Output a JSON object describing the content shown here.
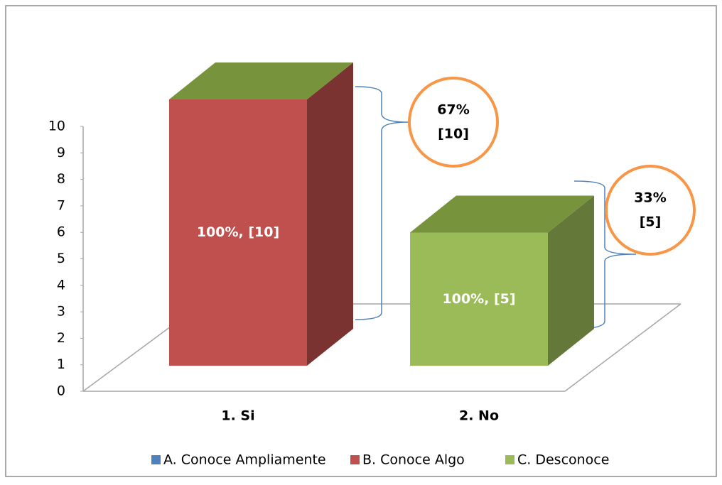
{
  "chart_data": {
    "type": "bar3d",
    "categories": [
      "1. Si",
      "2. No"
    ],
    "series": [
      {
        "name": "A. Conoce Ampliamente",
        "color": "#4f81bd",
        "values": [
          null,
          null
        ]
      },
      {
        "name": "B. Conoce Algo",
        "color": "#c0504d",
        "values": [
          10,
          null
        ],
        "value_labels": [
          "100%, [10]",
          null
        ]
      },
      {
        "name": "C. Desconoce",
        "color": "#9bbb59",
        "values": [
          null,
          5
        ],
        "value_labels": [
          null,
          "100%, [5]"
        ]
      }
    ],
    "ylim": [
      0,
      10
    ],
    "yticks": [
      0,
      1,
      2,
      3,
      4,
      5,
      6,
      7,
      8,
      9,
      10
    ],
    "annotations": [
      {
        "lines": [
          "67%",
          "[10]"
        ]
      },
      {
        "lines": [
          "33%",
          "[5]"
        ]
      }
    ],
    "legend": "bottom"
  }
}
